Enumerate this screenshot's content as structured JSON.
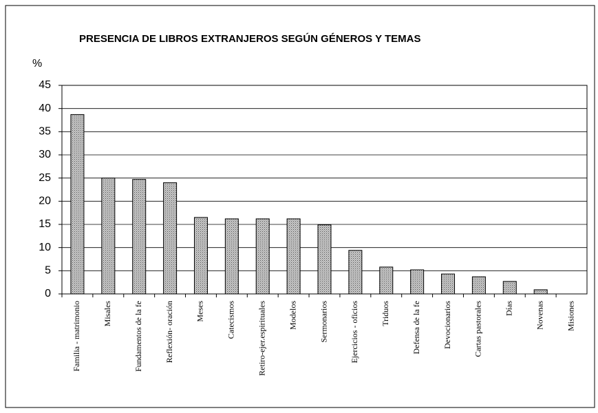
{
  "chart_data": {
    "type": "bar",
    "title": "PRESENCIA DE LIBROS EXTRANJEROS SEGÚN GÉNEROS Y TEMAS",
    "y_label": "%",
    "categories": [
      "Familia - matrimonio",
      "Misales",
      "Fundamentos de la fe",
      "Reflexión- oración",
      "Meses",
      "Catecismos",
      "Retiro-ejer.espirituales",
      "Modelos",
      "Sermonarios",
      "Ejercicios - oficios",
      "Triduos",
      "Defensa de la fe",
      "Devocionarios",
      "Cartas pastorales",
      "Días",
      "Novenas",
      "Misiones"
    ],
    "values": [
      38.7,
      25,
      24.7,
      24,
      16.5,
      16.2,
      16.2,
      16.2,
      14.9,
      9.4,
      5.8,
      5.2,
      4.3,
      3.7,
      2.7,
      0.9,
      0
    ],
    "color": "#a8a8a8",
    "ylim": [
      0,
      45
    ],
    "yticks": [
      0,
      5,
      10,
      15,
      20,
      25,
      30,
      35,
      40,
      45
    ],
    "grid": true
  }
}
